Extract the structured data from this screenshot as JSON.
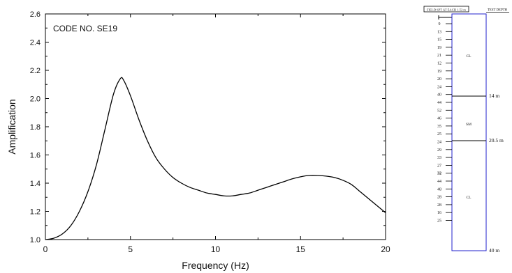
{
  "chart_data": {
    "type": "line",
    "annotation": "CODE NO. SE19",
    "xlabel": "Frequency (Hz)",
    "ylabel": "Amplification",
    "xlim": [
      0,
      20
    ],
    "ylim": [
      1.0,
      2.6
    ],
    "x_ticks": [
      "0",
      "5",
      "10",
      "15",
      "20"
    ],
    "y_ticks": [
      "1.0",
      "1.2",
      "1.4",
      "1.6",
      "1.8",
      "2.0",
      "2.2",
      "2.4",
      "2.6"
    ],
    "grid": false,
    "legend": "none",
    "series": [
      {
        "points": [
          [
            0.0,
            1.0
          ],
          [
            0.5,
            1.01
          ],
          [
            1.0,
            1.04
          ],
          [
            1.5,
            1.1
          ],
          [
            2.0,
            1.2
          ],
          [
            2.5,
            1.34
          ],
          [
            3.0,
            1.53
          ],
          [
            3.5,
            1.78
          ],
          [
            4.0,
            2.03
          ],
          [
            4.4,
            2.14
          ],
          [
            4.6,
            2.13
          ],
          [
            5.0,
            2.02
          ],
          [
            5.5,
            1.85
          ],
          [
            6.0,
            1.7
          ],
          [
            6.5,
            1.58
          ],
          [
            7.0,
            1.5
          ],
          [
            7.5,
            1.44
          ],
          [
            8.0,
            1.4
          ],
          [
            8.5,
            1.37
          ],
          [
            9.0,
            1.35
          ],
          [
            9.5,
            1.33
          ],
          [
            10.0,
            1.32
          ],
          [
            10.5,
            1.31
          ],
          [
            11.0,
            1.31
          ],
          [
            11.5,
            1.32
          ],
          [
            12.0,
            1.33
          ],
          [
            12.5,
            1.35
          ],
          [
            13.0,
            1.37
          ],
          [
            13.5,
            1.39
          ],
          [
            14.0,
            1.41
          ],
          [
            14.5,
            1.43
          ],
          [
            15.0,
            1.445
          ],
          [
            15.5,
            1.455
          ],
          [
            16.0,
            1.455
          ],
          [
            16.5,
            1.45
          ],
          [
            17.0,
            1.44
          ],
          [
            17.5,
            1.42
          ],
          [
            18.0,
            1.39
          ],
          [
            18.5,
            1.34
          ],
          [
            19.0,
            1.29
          ],
          [
            19.5,
            1.24
          ],
          [
            20.0,
            1.19
          ]
        ]
      }
    ]
  },
  "borehole": {
    "header_spt": "FIELD SPT AT EACH 1.52 m",
    "header_depth": "TEST DEPTH",
    "spt_values": [
      "9",
      "13",
      "15",
      "19",
      "21",
      "12",
      "19",
      "20",
      "24",
      "40",
      "44",
      "52",
      "46",
      "35",
      "25",
      "24",
      "29",
      "33",
      "27",
      "32",
      "44",
      "48",
      "28",
      "28",
      "16",
      "25"
    ],
    "layers": [
      {
        "label": "CL",
        "depth_label": "14 m"
      },
      {
        "label": "SM",
        "depth_label": "20.5 m"
      },
      {
        "label": "CL",
        "depth_label": "40 m"
      }
    ]
  }
}
